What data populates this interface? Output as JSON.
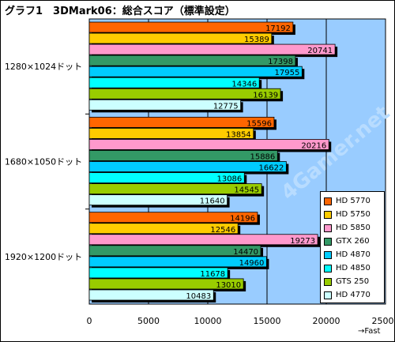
{
  "title": "グラフ1　3DMark06：総合スコア（標準設定）",
  "x_axis_note": "→Fast",
  "watermark": "4Gamer.net",
  "colors": {
    "plot_bg": "#99ccff",
    "HD 5770": "#ff6600",
    "HD 5750": "#ffcc00",
    "HD 5850": "#ff99cc",
    "GTX 260": "#339966",
    "HD 4870": "#00ccff",
    "HD 4850": "#00ffff",
    "GTS 250": "#99cc00",
    "HD 4770": "#ccffff"
  },
  "chart_data": {
    "type": "bar",
    "orientation": "horizontal",
    "title": "グラフ1　3DMark06：総合スコア（標準設定）",
    "categories": [
      "1280×1024ドット",
      "1680×1050ドット",
      "1920×1200ドット"
    ],
    "series": [
      {
        "name": "HD 5770",
        "values": [
          17192,
          15596,
          14196
        ]
      },
      {
        "name": "HD 5750",
        "values": [
          15389,
          13854,
          12546
        ]
      },
      {
        "name": "HD 5850",
        "values": [
          20741,
          20216,
          19273
        ]
      },
      {
        "name": "GTX 260",
        "values": [
          17398,
          15886,
          14470
        ]
      },
      {
        "name": "HD 4870",
        "values": [
          17955,
          16622,
          14960
        ]
      },
      {
        "name": "HD 4850",
        "values": [
          14346,
          13086,
          11678
        ]
      },
      {
        "name": "GTS 250",
        "values": [
          16139,
          14545,
          13010
        ]
      },
      {
        "name": "HD 4770",
        "values": [
          12775,
          11640,
          10483
        ]
      }
    ],
    "xlim": [
      0,
      25000
    ],
    "xticks": [
      0,
      5000,
      10000,
      15000,
      20000,
      25000
    ],
    "grid": true,
    "legend_position": "bottom-right"
  }
}
